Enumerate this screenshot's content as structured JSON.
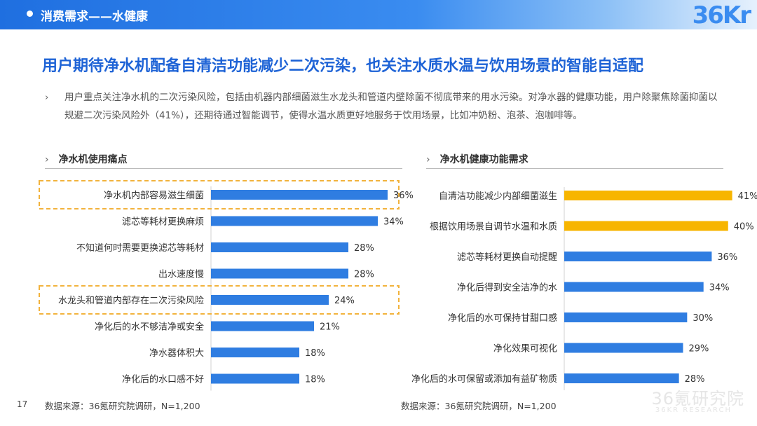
{
  "header": {
    "section_title": "消费需求——水健康",
    "logo_text": "36Kr"
  },
  "headline": "用户期待净水机配备自清洁功能减少二次污染，也关注水质水温与饮用场景的智能自适配",
  "paragraph": "用户重点关注净水机的二次污染风险，包括由机器内部细菌滋生水龙头和管道内壁除菌不彻底带来的用水污染。对净水器的健康功能，用户除聚焦除菌抑菌以规避二次污染风险外（41%），还期待通过智能调节，使得水温水质更好地服务于饮用场景，比如冲奶粉、泡茶、泡咖啡等。",
  "left_section": {
    "title": "净水机使用痛点",
    "source": "数据来源：36氪研究院调研，N=1,200"
  },
  "right_section": {
    "title": "净水机健康功能需求",
    "source": "数据来源：36氪研究院调研，N=1,200"
  },
  "page_number": "17",
  "watermark": {
    "cn": "36氪研究院",
    "en": "36KR RESEARCH"
  },
  "colors": {
    "blue": "#2f7de1",
    "yellow": "#f7b500",
    "highlight_border": "#f2b33d",
    "title_blue": "#1e63d6"
  },
  "chart_data": [
    {
      "type": "bar",
      "orientation": "horizontal",
      "categories": [
        "净水机内部容易滋生细菌",
        "滤芯等耗材更换麻烦",
        "不知道何时需要更换滤芯等耗材",
        "出水速度慢",
        "水龙头和管道内部存在二次污染风险",
        "净化后的水不够洁净或安全",
        "净水器体积大",
        "净化后的水口感不好"
      ],
      "values": [
        36,
        34,
        28,
        28,
        24,
        21,
        18,
        18
      ],
      "labels": [
        "36%",
        "34%",
        "28%",
        "28%",
        "24%",
        "21%",
        "18%",
        "18%"
      ],
      "highlighted": [
        0,
        4
      ],
      "unit": "%",
      "xlim": [
        0,
        40
      ]
    },
    {
      "type": "bar",
      "orientation": "horizontal",
      "categories": [
        "自清洁功能减少内部细菌滋生",
        "根据饮用场景自调节水温和水质",
        "滤芯等耗材更换自动提醒",
        "净化后得到安全洁净的水",
        "净化后的水可保持甘甜口感",
        "净化效果可视化",
        "净化后的水可保留或添加有益矿物质"
      ],
      "values": [
        41,
        40,
        36,
        34,
        30,
        29,
        28
      ],
      "labels": [
        "41%",
        "40%",
        "36%",
        "34%",
        "30%",
        "29%",
        "28%"
      ],
      "highlighted_color_indices": [
        0,
        1
      ],
      "unit": "%",
      "xlim": [
        0,
        45
      ]
    }
  ]
}
